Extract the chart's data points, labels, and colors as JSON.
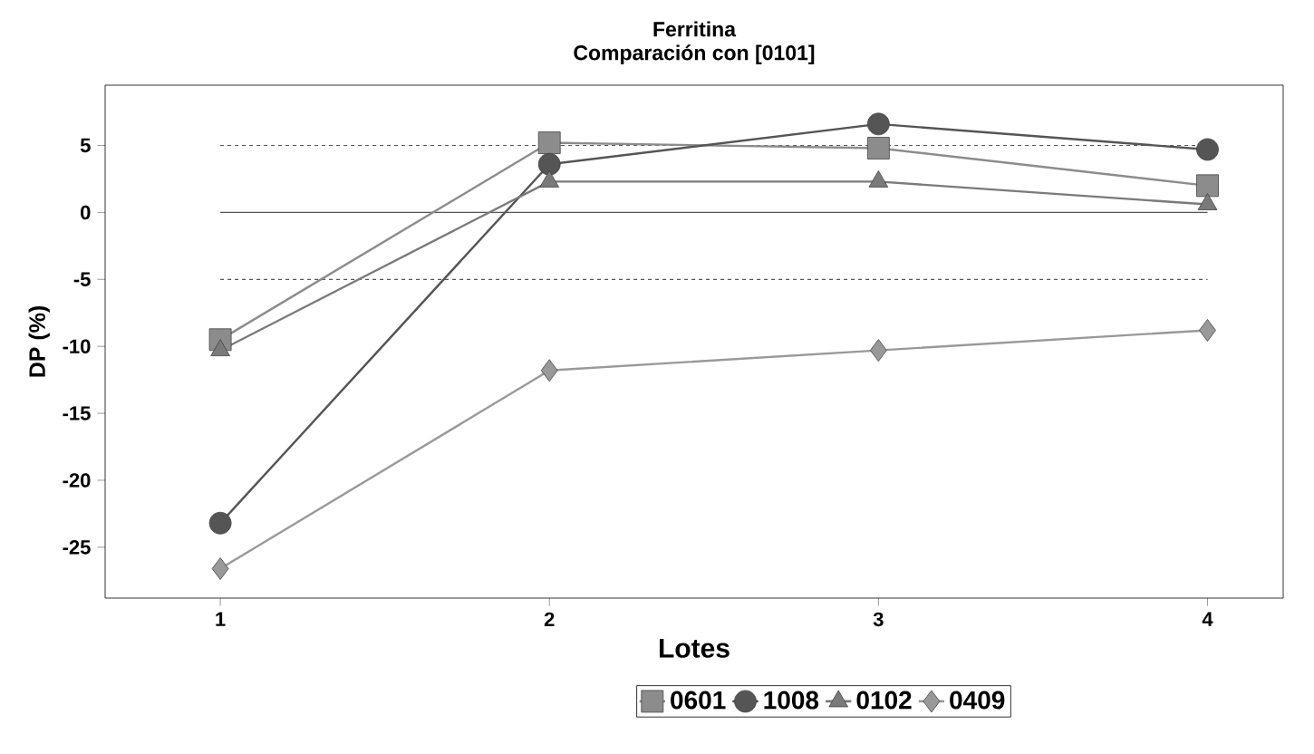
{
  "chart_data": {
    "type": "line",
    "title": "Ferritina",
    "subtitle": "Comparación con [0101]",
    "xlabel": "Lotes",
    "ylabel": "DP (%)",
    "x": [
      1,
      2,
      3,
      4
    ],
    "xlim": [
      0.65,
      4.23
    ],
    "xticks": [
      1,
      2,
      3,
      4
    ],
    "ylim": [
      -28.8,
      9.5
    ],
    "yticks": [
      -25,
      -20,
      -15,
      -10,
      -5,
      0,
      5
    ],
    "series": [
      {
        "name": "0601",
        "color": "#8c8c8c",
        "marker": "square",
        "values": [
          -9.5,
          5.2,
          4.8,
          2.0
        ]
      },
      {
        "name": "1008",
        "color": "#555555",
        "marker": "circle",
        "values": [
          -23.2,
          3.6,
          6.6,
          4.7
        ]
      },
      {
        "name": "0102",
        "color": "#7a7a7a",
        "marker": "triangle",
        "values": [
          -10.3,
          2.3,
          2.3,
          0.6
        ]
      },
      {
        "name": "0409",
        "color": "#999999",
        "marker": "diamond",
        "values": [
          -26.6,
          -11.8,
          -10.3,
          -8.8
        ]
      }
    ],
    "ref_lines": [
      {
        "axis": "y",
        "value": 5,
        "line_style": "dashed",
        "color": "#555555"
      },
      {
        "axis": "y",
        "value": 0,
        "line_style": "solid",
        "color": "#555555"
      },
      {
        "axis": "y",
        "value": -5,
        "line_style": "dashed",
        "color": "#555555"
      }
    ],
    "grid": false,
    "legend": "bottom",
    "line_style": "solid"
  }
}
